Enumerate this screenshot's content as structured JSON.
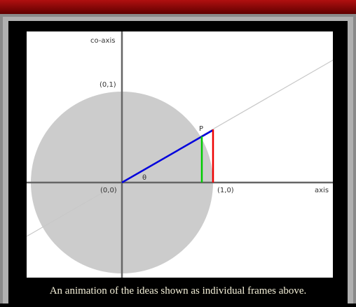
{
  "figure": {
    "labels": {
      "co_axis": "co-axis",
      "unit_y": "(0,1)",
      "point": "P",
      "angle": "θ",
      "origin": "(0,0)",
      "unit_x": "(1,0)",
      "axis": "axis"
    },
    "caption": "An animation of the ideas shown as individual frames above."
  }
}
